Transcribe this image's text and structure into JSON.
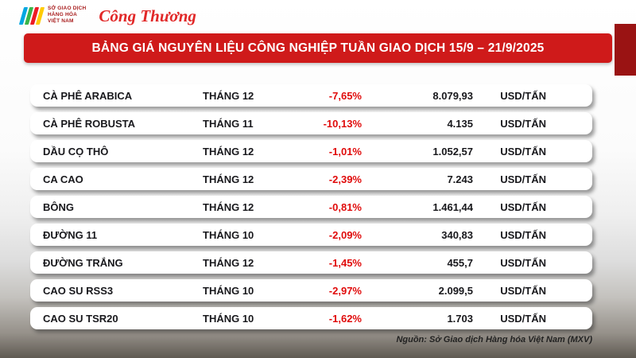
{
  "logos": {
    "mxv_lines": [
      "SỞ GIAO DỊCH",
      "HÀNG HÓA",
      "VIỆT NAM"
    ],
    "congthuong": "Công Thương"
  },
  "chart_data": {
    "type": "table",
    "title": "BẢNG GIÁ NGUYÊN LIỆU CÔNG NGHIỆP TUẦN GIAO DỊCH 15/9 – 21/9/2025",
    "rows": [
      {
        "name": "CÀ PHÊ ARABICA",
        "month": "THÁNG 12",
        "change": "-7,65%",
        "change_pct": -7.65,
        "price": "8.079,93",
        "price_value": 8079.93,
        "unit": "USD/TẤN"
      },
      {
        "name": "CÀ PHÊ ROBUSTA",
        "month": "THÁNG 11",
        "change": "-10,13%",
        "change_pct": -10.13,
        "price": "4.135",
        "price_value": 4135,
        "unit": "USD/TẤN"
      },
      {
        "name": "DẦU CỌ THÔ",
        "month": "THÁNG 12",
        "change": "-1,01%",
        "change_pct": -1.01,
        "price": "1.052,57",
        "price_value": 1052.57,
        "unit": "USD/TẤN"
      },
      {
        "name": "CA CAO",
        "month": "THÁNG 12",
        "change": "-2,39%",
        "change_pct": -2.39,
        "price": "7.243",
        "price_value": 7243,
        "unit": "USD/TẤN"
      },
      {
        "name": "BÔNG",
        "month": "THÁNG 12",
        "change": "-0,81%",
        "change_pct": -0.81,
        "price": "1.461,44",
        "price_value": 1461.44,
        "unit": "USD/TẤN"
      },
      {
        "name": "ĐƯỜNG 11",
        "month": "THÁNG 10",
        "change": "-2,09%",
        "change_pct": -2.09,
        "price": "340,83",
        "price_value": 340.83,
        "unit": "USD/TẤN"
      },
      {
        "name": "ĐƯỜNG TRẮNG",
        "month": "THÁNG 12",
        "change": "-1,45%",
        "change_pct": -1.45,
        "price": "455,7",
        "price_value": 455.7,
        "unit": "USD/TẤN"
      },
      {
        "name": "CAO SU RSS3",
        "month": "THÁNG 10",
        "change": "-2,97%",
        "change_pct": -2.97,
        "price": "2.099,5",
        "price_value": 2099.5,
        "unit": "USD/TẤN"
      },
      {
        "name": "CAO SU TSR20",
        "month": "THÁNG 10",
        "change": "-1,62%",
        "change_pct": -1.62,
        "price": "1.703",
        "price_value": 1703,
        "unit": "USD/TẤN"
      }
    ]
  },
  "footer": {
    "source": "Nguồn: Sở Giao dịch Hàng hóa Việt Nam (MXV)"
  },
  "colors": {
    "banner_red": "#cf1a1a",
    "accent_dark_red": "#9a1313",
    "change_red": "#e00b0b",
    "row_text": "#18181c"
  }
}
